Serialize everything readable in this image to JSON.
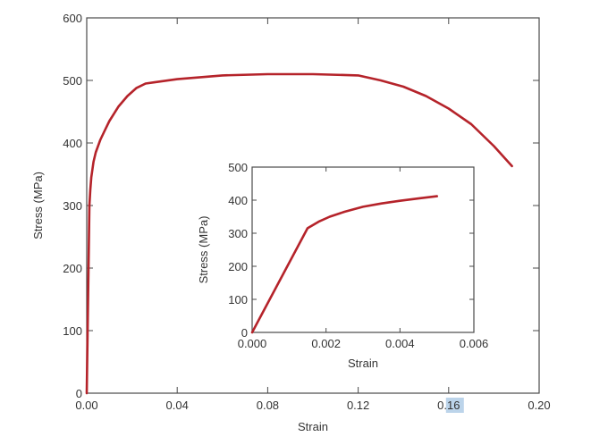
{
  "chart_data": [
    {
      "id": "main",
      "type": "line",
      "xlabel": "Strain",
      "ylabel": "Stress (MPa)",
      "xlim": [
        0,
        0.2
      ],
      "ylim": [
        0,
        600
      ],
      "x_ticks": [
        0.0,
        0.04,
        0.08,
        0.12,
        0.16,
        0.2
      ],
      "x_tick_labels": [
        "0.00",
        "0.04",
        "0.08",
        "0.12",
        "0.16",
        "0.20"
      ],
      "y_ticks": [
        0,
        100,
        200,
        300,
        400,
        500,
        600
      ],
      "y_tick_labels": [
        "0",
        "100",
        "200",
        "300",
        "400",
        "500",
        "600"
      ],
      "highlighted_tick_label": "0.16",
      "color": "#b5232a",
      "grid": false,
      "series": [
        {
          "x": [
            0.0,
            0.0012,
            0.0016,
            0.002,
            0.003,
            0.004,
            0.006,
            0.008,
            0.01,
            0.014,
            0.018,
            0.022,
            0.026,
            0.03,
            0.04,
            0.06,
            0.08,
            0.1,
            0.12,
            0.13,
            0.14,
            0.15,
            0.16,
            0.17,
            0.18,
            0.188
          ],
          "y": [
            0,
            300,
            325,
            345,
            370,
            385,
            405,
            420,
            435,
            458,
            475,
            488,
            495,
            497,
            502,
            508,
            510,
            510,
            508,
            500,
            490,
            475,
            455,
            430,
            395,
            363
          ]
        }
      ]
    },
    {
      "id": "inset",
      "type": "line",
      "xlabel": "Strain",
      "ylabel": "Stress (MPa)",
      "xlim": [
        0,
        0.006
      ],
      "ylim": [
        0,
        500
      ],
      "x_ticks": [
        0.0,
        0.002,
        0.004,
        0.006
      ],
      "x_tick_labels": [
        "0.000",
        "0.002",
        "0.004",
        "0.006"
      ],
      "y_ticks": [
        0,
        100,
        200,
        300,
        400,
        500
      ],
      "y_tick_labels": [
        "0",
        "100",
        "200",
        "300",
        "400",
        "500"
      ],
      "color": "#b5232a",
      "grid": false,
      "series": [
        {
          "x": [
            0.0,
            0.0015,
            0.0018,
            0.0021,
            0.0025,
            0.003,
            0.0035,
            0.004,
            0.0045,
            0.005
          ],
          "y": [
            0,
            315,
            335,
            350,
            365,
            380,
            390,
            398,
            405,
            412
          ]
        }
      ]
    }
  ]
}
